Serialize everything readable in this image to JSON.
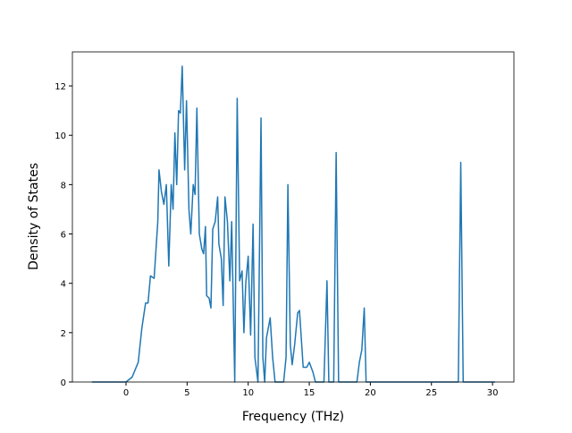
{
  "chart_data": {
    "type": "line",
    "xlabel": "Frequency (THz)",
    "ylabel": "Density of States",
    "x": [
      -2.8,
      0,
      0.5,
      1,
      1.3,
      1.6,
      1.8,
      2,
      2.3,
      2.6,
      2.7,
      2.9,
      3.1,
      3.3,
      3.5,
      3.7,
      3.85,
      4.0,
      4.15,
      4.3,
      4.45,
      4.6,
      4.8,
      4.95,
      5.15,
      5.3,
      5.5,
      5.65,
      5.8,
      6.0,
      6.2,
      6.35,
      6.5,
      6.6,
      6.8,
      6.95,
      7.1,
      7.3,
      7.5,
      7.6,
      7.8,
      7.95,
      8.1,
      8.3,
      8.5,
      8.65,
      8.9,
      9.1,
      9.3,
      9.5,
      9.65,
      9.8,
      10.0,
      10.2,
      10.4,
      10.55,
      10.8,
      11.05,
      11.2,
      11.35,
      11.5,
      11.8,
      12.0,
      12.2,
      12.9,
      13.1,
      13.25,
      13.45,
      13.6,
      13.8,
      14.05,
      14.2,
      14.5,
      14.8,
      15.0,
      15.3,
      15.5,
      16.2,
      16.45,
      16.6,
      17.0,
      17.2,
      17.4,
      18.9,
      19.1,
      19.3,
      19.5,
      19.65,
      27.2,
      27.4,
      27.6,
      30.2
    ],
    "series": [
      {
        "color": "#1f77b4",
        "values": [
          0,
          0,
          0.2,
          0.8,
          2.2,
          3.2,
          3.2,
          4.3,
          4.2,
          6.5,
          8.6,
          7.7,
          7.2,
          8.0,
          4.7,
          8.0,
          7.0,
          10.1,
          8.0,
          11.0,
          10.9,
          12.8,
          8.6,
          11.4,
          7.0,
          6.0,
          8.0,
          7.6,
          11.1,
          6.0,
          5.4,
          5.2,
          6.3,
          3.5,
          3.4,
          3.0,
          6.2,
          6.5,
          7.5,
          5.6,
          5.0,
          3.1,
          7.5,
          6.5,
          4.1,
          6.5,
          0,
          11.5,
          4.1,
          4.5,
          2.0,
          4.0,
          5.1,
          1.9,
          6.4,
          1.0,
          0,
          10.7,
          1.0,
          0,
          1.8,
          2.6,
          1.0,
          0,
          0,
          1.0,
          8.0,
          1.5,
          0.7,
          1.5,
          2.8,
          2.9,
          0.6,
          0.6,
          0.8,
          0.4,
          0,
          0,
          4.1,
          0,
          0,
          9.3,
          0,
          0,
          0.8,
          1.3,
          3.0,
          0,
          0,
          8.9,
          0,
          0
        ]
      }
    ],
    "xlim": [
      -4.39,
      31.75
    ],
    "ylim": [
      0,
      13.38
    ],
    "xticks": [
      0,
      5,
      10,
      15,
      20,
      25,
      30
    ],
    "yticks": [
      0,
      2,
      4,
      6,
      8,
      10,
      12
    ],
    "grid": false
  }
}
